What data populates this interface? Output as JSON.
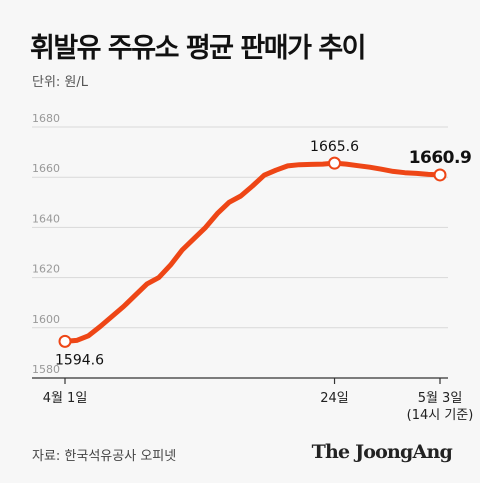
{
  "header": {
    "title": "휘발유 주유소 평균 판매가 추이",
    "unit": "단위: 원/L"
  },
  "footer": {
    "source": "자료: 한국석유공사 오피넷",
    "brand": "The JoongAng"
  },
  "colors": {
    "line": "#ee4616",
    "marker_fill": "#ffffff",
    "grid": "#d9d9d9",
    "tick_text": "#999999",
    "axis": "#333333",
    "background": "#f7f7f7"
  },
  "chart_data": {
    "type": "line",
    "title": "휘발유 주유소 평균 판매가 추이",
    "ylabel": "",
    "xlabel": "",
    "ylim": [
      1580,
      1680
    ],
    "yticks": [
      1580,
      1600,
      1620,
      1640,
      1660,
      1680
    ],
    "grid": true,
    "x_range": [
      1,
      33
    ],
    "xtick_labels": [
      {
        "x": 1,
        "lines": [
          "4월 1일"
        ]
      },
      {
        "x": 24,
        "lines": [
          "24일"
        ]
      },
      {
        "x": 33,
        "lines": [
          "5월 3일",
          "(14시 기준)"
        ]
      }
    ],
    "series": [
      {
        "values": [
          {
            "x": 1,
            "y": 1594.6
          },
          {
            "x": 2,
            "y": 1595.0
          },
          {
            "x": 3,
            "y": 1596.8
          },
          {
            "x": 4,
            "y": 1600.5
          },
          {
            "x": 5,
            "y": 1604.5
          },
          {
            "x": 6,
            "y": 1608.5
          },
          {
            "x": 7,
            "y": 1613.0
          },
          {
            "x": 8,
            "y": 1617.5
          },
          {
            "x": 9,
            "y": 1620.0
          },
          {
            "x": 10,
            "y": 1625.0
          },
          {
            "x": 11,
            "y": 1631.0
          },
          {
            "x": 12,
            "y": 1635.5
          },
          {
            "x": 13,
            "y": 1640.0
          },
          {
            "x": 14,
            "y": 1645.5
          },
          {
            "x": 15,
            "y": 1650.0
          },
          {
            "x": 16,
            "y": 1652.5
          },
          {
            "x": 17,
            "y": 1656.5
          },
          {
            "x": 18,
            "y": 1660.8
          },
          {
            "x": 19,
            "y": 1662.8
          },
          {
            "x": 20,
            "y": 1664.5
          },
          {
            "x": 21,
            "y": 1665.0
          },
          {
            "x": 22,
            "y": 1665.1
          },
          {
            "x": 23,
            "y": 1665.2
          },
          {
            "x": 24,
            "y": 1665.6
          },
          {
            "x": 25,
            "y": 1665.2
          },
          {
            "x": 26,
            "y": 1664.6
          },
          {
            "x": 27,
            "y": 1664.0
          },
          {
            "x": 28,
            "y": 1663.2
          },
          {
            "x": 29,
            "y": 1662.3
          },
          {
            "x": 30,
            "y": 1661.8
          },
          {
            "x": 31,
            "y": 1661.5
          },
          {
            "x": 32,
            "y": 1661.1
          },
          {
            "x": 33,
            "y": 1660.9
          }
        ]
      }
    ],
    "annotations": [
      {
        "x": 1,
        "y": 1594.6,
        "label": "1594.6",
        "bold": false,
        "position": "below"
      },
      {
        "x": 24,
        "y": 1665.6,
        "label": "1665.6",
        "bold": false,
        "position": "above"
      },
      {
        "x": 33,
        "y": 1660.9,
        "label": "1660.9",
        "bold": true,
        "position": "above"
      }
    ]
  }
}
